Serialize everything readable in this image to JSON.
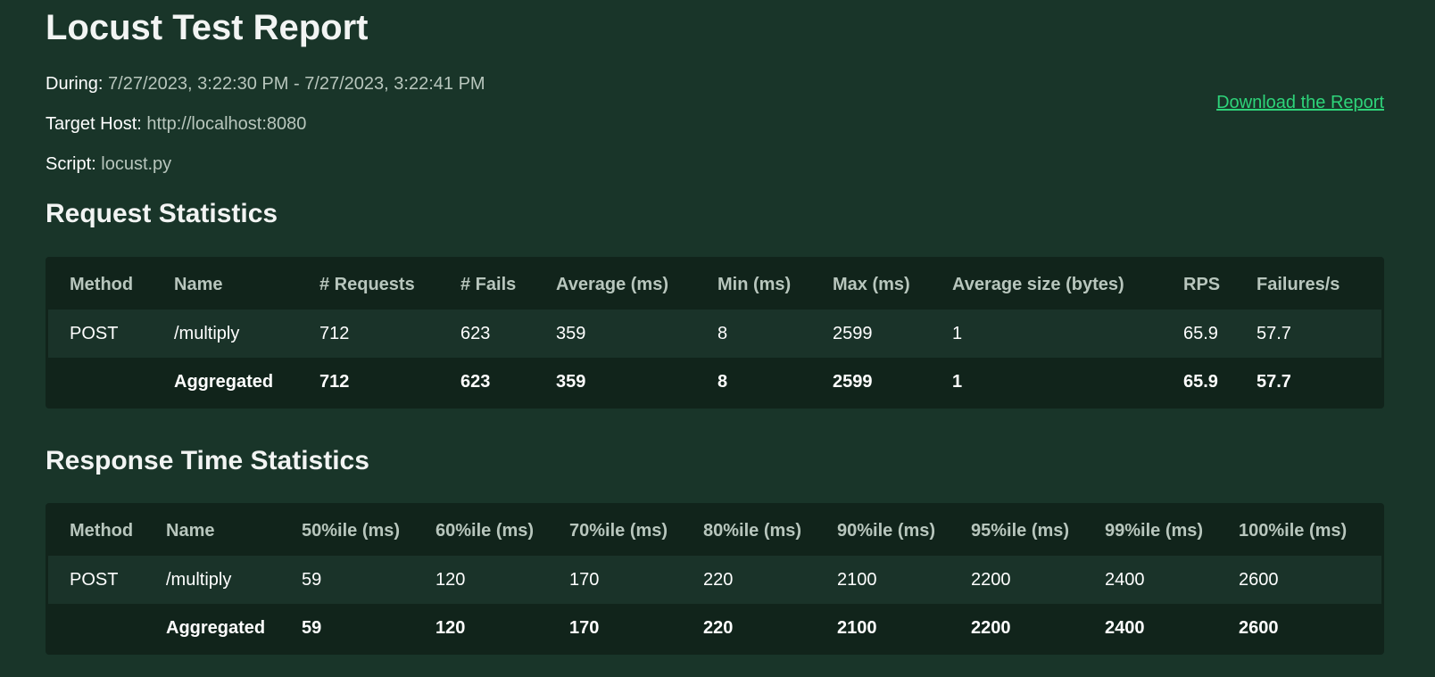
{
  "report": {
    "title": "Locust Test Report",
    "during_label": "During:",
    "during_value": "7/27/2023, 3:22:30 PM - 7/27/2023, 3:22:41 PM",
    "host_label": "Target Host:",
    "host_value": "http://localhost:8080",
    "script_label": "Script:",
    "script_value": "locust.py",
    "download_label": "Download the Report"
  },
  "request_stats": {
    "title": "Request Statistics",
    "headers": [
      "Method",
      "Name",
      "# Requests",
      "# Fails",
      "Average (ms)",
      "Min (ms)",
      "Max (ms)",
      "Average size (bytes)",
      "RPS",
      "Failures/s"
    ],
    "rows": [
      [
        "POST",
        "/multiply",
        "712",
        "623",
        "359",
        "8",
        "2599",
        "1",
        "65.9",
        "57.7"
      ]
    ],
    "aggregated": [
      "",
      "Aggregated",
      "712",
      "623",
      "359",
      "8",
      "2599",
      "1",
      "65.9",
      "57.7"
    ]
  },
  "response_stats": {
    "title": "Response Time Statistics",
    "headers": [
      "Method",
      "Name",
      "50%ile (ms)",
      "60%ile (ms)",
      "70%ile (ms)",
      "80%ile (ms)",
      "90%ile (ms)",
      "95%ile (ms)",
      "99%ile (ms)",
      "100%ile (ms)"
    ],
    "rows": [
      [
        "POST",
        "/multiply",
        "59",
        "120",
        "170",
        "220",
        "2100",
        "2200",
        "2400",
        "2600"
      ]
    ],
    "aggregated": [
      "",
      "Aggregated",
      "59",
      "120",
      "170",
      "220",
      "2100",
      "2200",
      "2400",
      "2600"
    ]
  }
}
